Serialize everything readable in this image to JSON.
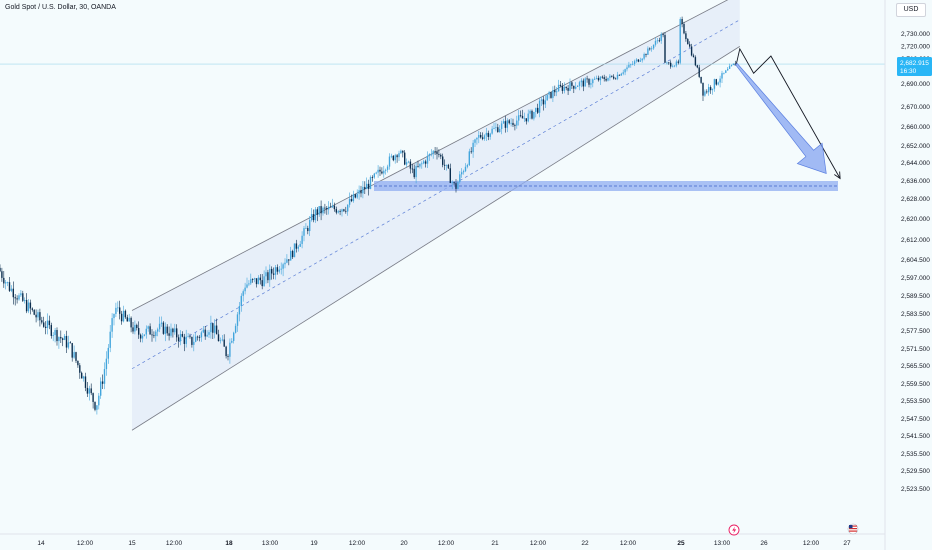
{
  "header": {
    "symbol_title": "Gold Spot / U.S. Dollar, 30, OANDA",
    "currency_button": "USD"
  },
  "price_tag": {
    "price": "2,682.915",
    "countdown": "16:30"
  },
  "colors": {
    "background": "#f4fbfd",
    "candle_up": "#42a5dc",
    "candle_down": "#0b2d4e",
    "channel_fill": "#dde6f5",
    "zone": "#90aef0",
    "price_tag": "#29b6f6",
    "projection_arrow": "#7e9ef0"
  },
  "icons": {
    "marker_event": "lightning-icon",
    "marker_flag": "us-flag-icon"
  },
  "chart_data": {
    "type": "candlestick",
    "title": "Gold Spot / U.S. Dollar, 30, OANDA",
    "xlabel": "",
    "ylabel": "",
    "y_ticks": [
      "2,730.000",
      "2,720.000",
      "2,710.000",
      "2,700.000",
      "2,690.000",
      "2,670.000",
      "2,660.000",
      "2,652.000",
      "2,644.000",
      "2,636.000",
      "2,628.000",
      "2,620.000",
      "2,612.000",
      "2,604.500",
      "2,597.000",
      "2,589.500",
      "2,583.500",
      "2,577.500",
      "2,571.500",
      "2,565.500",
      "2,559.500",
      "2,553.500",
      "2,547.500",
      "2,541.500",
      "2,535.500",
      "2,529.500",
      "2,523.500"
    ],
    "x_ticks": [
      "14",
      "12:00",
      "15",
      "12:00",
      "18",
      "13:00",
      "19",
      "12:00",
      "20",
      "12:00",
      "21",
      "12:00",
      "22",
      "12:00",
      "25",
      "13:00",
      "26",
      "12:00",
      "27"
    ],
    "last_price": 2682.915,
    "price_path": [
      {
        "t": "13 Nov 00:00",
        "price": 2610
      },
      {
        "t": "13 Nov 04:00",
        "price": 2618
      },
      {
        "t": "13 Nov 09:00",
        "price": 2598
      },
      {
        "t": "13 Nov 16:00",
        "price": 2583
      },
      {
        "t": "14 Nov 00:00",
        "price": 2572
      },
      {
        "t": "14 Nov 08:00",
        "price": 2563
      },
      {
        "t": "14 Nov 12:00",
        "price": 2551
      },
      {
        "t": "14 Nov 15:00",
        "price": 2542
      },
      {
        "t": "14 Nov 17:00",
        "price": 2553
      },
      {
        "t": "14 Nov 20:00",
        "price": 2576
      },
      {
        "t": "15 Nov 02:00",
        "price": 2567
      },
      {
        "t": "15 Nov 08:00",
        "price": 2569
      },
      {
        "t": "15 Nov 15:00",
        "price": 2564
      },
      {
        "t": "15 Nov 20:00",
        "price": 2570
      },
      {
        "t": "18 Nov 00:00",
        "price": 2560
      },
      {
        "t": "18 Nov 05:00",
        "price": 2584
      },
      {
        "t": "18 Nov 11:00",
        "price": 2586
      },
      {
        "t": "18 Nov 18:00",
        "price": 2595
      },
      {
        "t": "19 Nov 01:00",
        "price": 2612
      },
      {
        "t": "19 Nov 09:00",
        "price": 2614
      },
      {
        "t": "19 Nov 16:00",
        "price": 2624
      },
      {
        "t": "19 Nov 23:00",
        "price": 2637
      },
      {
        "t": "20 Nov 03:00",
        "price": 2627
      },
      {
        "t": "20 Nov 09:00",
        "price": 2638
      },
      {
        "t": "20 Nov 14:00",
        "price": 2621
      },
      {
        "t": "20 Nov 20:00",
        "price": 2643
      },
      {
        "t": "21 Nov 03:00",
        "price": 2649
      },
      {
        "t": "21 Nov 10:00",
        "price": 2653
      },
      {
        "t": "21 Nov 17:00",
        "price": 2665
      },
      {
        "t": "22 Nov 00:00",
        "price": 2668
      },
      {
        "t": "22 Nov 08:00",
        "price": 2672
      },
      {
        "t": "22 Nov 15:00",
        "price": 2690
      },
      {
        "t": "22 Nov 20:00",
        "price": 2708
      },
      {
        "t": "23 Nov 00:00",
        "price": 2695
      },
      {
        "t": "23 Nov 04:00",
        "price": 2705
      },
      {
        "t": "25 Nov 00:00",
        "price": 2720
      },
      {
        "t": "25 Nov 03:00",
        "price": 2698
      },
      {
        "t": "25 Nov 07:00",
        "price": 2663
      },
      {
        "t": "25 Nov 11:00",
        "price": 2669
      },
      {
        "t": "25 Nov 16:00",
        "price": 2683
      }
    ],
    "channel": {
      "upper": [
        {
          "t": "15 Nov 00:00",
          "price": 2575
        },
        {
          "t": "25 Nov 17:00",
          "price": 2740
        }
      ],
      "middle": [
        {
          "t": "15 Nov 00:00",
          "price": 2555
        },
        {
          "t": "25 Nov 17:00",
          "price": 2719
        }
      ],
      "lower": [
        {
          "t": "15 Nov 00:00",
          "price": 2534
        },
        {
          "t": "25 Nov 17:00",
          "price": 2698
        }
      ]
    },
    "support_zone": {
      "price_low": 2620,
      "price_high": 2624,
      "from": "19 Nov 16:00",
      "to": "27 Nov 00:00"
    },
    "horizontal_line": 2683,
    "projection_path": [
      {
        "t": "25 Nov 16:00",
        "price": 2683
      },
      {
        "t": "25 Nov 17:00",
        "price": 2696
      },
      {
        "t": "25 Nov 21:00",
        "price": 2675
      },
      {
        "t": "26 Nov 02:00",
        "price": 2690
      },
      {
        "t": "26 Nov 22:00",
        "price": 2625
      }
    ],
    "projection_arrow": [
      {
        "t": "25 Nov 16:00",
        "price": 2683
      },
      {
        "t": "26 Nov 18:00",
        "price": 2627
      }
    ],
    "grid": false,
    "legend": "none"
  }
}
